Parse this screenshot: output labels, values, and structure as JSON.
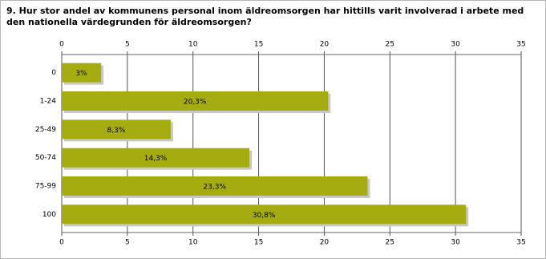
{
  "chart_data": {
    "type": "bar",
    "orientation": "horizontal",
    "title": "9. Hur stor andel av kommunens personal inom äldreomsorgen har hittills varit involverad i arbete med den nationella värdegrunden för äldreomsorgen?",
    "categories": [
      "0",
      "1-24",
      "25-49",
      "50-74",
      "75-99",
      "100"
    ],
    "values": [
      3,
      20.3,
      8.3,
      14.3,
      23.3,
      30.8
    ],
    "value_labels": [
      "3%",
      "20,3%",
      "8,3%",
      "14,3%",
      "23,3%",
      "30,8%"
    ],
    "color": "#a5ac10",
    "xlim": [
      0,
      35
    ],
    "xticks": [
      0,
      5,
      10,
      15,
      20,
      25,
      30,
      35
    ],
    "grid": true
  }
}
